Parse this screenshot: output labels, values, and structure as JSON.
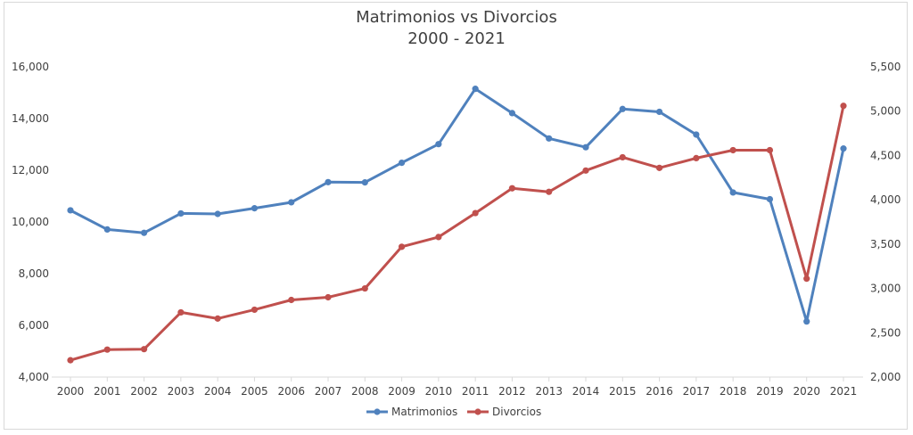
{
  "chart_data": {
    "type": "line",
    "title": "Matrimonios vs Divorcios",
    "subtitle": "2000 - 2021",
    "categories": [
      "2000",
      "2001",
      "2002",
      "2003",
      "2004",
      "2005",
      "2006",
      "2007",
      "2008",
      "2009",
      "2010",
      "2011",
      "2012",
      "2013",
      "2014",
      "2015",
      "2016",
      "2017",
      "2018",
      "2019",
      "2020",
      "2021"
    ],
    "series": [
      {
        "name": "Matrimonios",
        "axis": "left",
        "color": "#4f81bd",
        "values": [
          10450,
          9710,
          9580,
          10330,
          10310,
          10530,
          10760,
          11540,
          11530,
          12290,
          13010,
          15150,
          14210,
          13230,
          12890,
          14370,
          14260,
          13380,
          11140,
          10880,
          6150,
          12840
        ]
      },
      {
        "name": "Divorcios",
        "axis": "right",
        "color": "#c0504d",
        "values": [
          2190,
          2310,
          2315,
          2730,
          2660,
          2760,
          2870,
          2900,
          3000,
          3470,
          3580,
          3850,
          4130,
          4090,
          4330,
          4480,
          4360,
          4470,
          4560,
          4560,
          3110,
          5060
        ]
      }
    ],
    "y_left": {
      "range": [
        4000,
        16000
      ],
      "ticks": [
        "4,000",
        "6,000",
        "8,000",
        "10,000",
        "12,000",
        "14,000",
        "16,000"
      ]
    },
    "y_right": {
      "range": [
        2000,
        5500
      ],
      "ticks": [
        "2,000",
        "2,500",
        "3,000",
        "3,500",
        "4,000",
        "4,500",
        "5,000",
        "5,500"
      ]
    },
    "grid": false,
    "legend": "bottom"
  }
}
